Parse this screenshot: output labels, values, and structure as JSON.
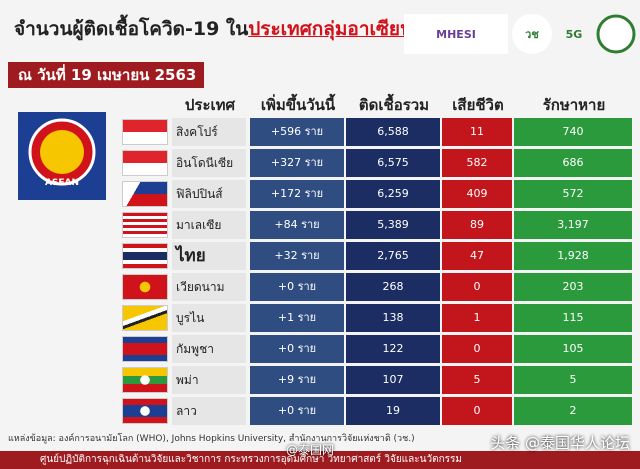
{
  "header": {
    "title_prefix": "จำนวนผู้ติดเชื้อโควิด-19 ใน",
    "title_highlight": "ประเทศกลุ่มอาเซียน",
    "date": "ณ วันที่ 19 เมษายน 2563",
    "logos": [
      "MHESI",
      "วช",
      "5G"
    ]
  },
  "asean_logo": "ASEAN",
  "table": {
    "columns": [
      "ประเทศ",
      "เพิ่มขึ้นวันนี้",
      "ติดเชื้อรวม",
      "เสียชีวิต",
      "รักษาหาย"
    ],
    "rows": [
      {
        "country": "สิงคโปร์",
        "increase": "+596 ราย",
        "total": "6,588",
        "deaths": "11",
        "recovered": "740"
      },
      {
        "country": "อินโดนีเซีย",
        "increase": "+327 ราย",
        "total": "6,575",
        "deaths": "582",
        "recovered": "686"
      },
      {
        "country": "ฟิลิปปินส์",
        "increase": "+172 ราย",
        "total": "6,259",
        "deaths": "409",
        "recovered": "572"
      },
      {
        "country": "มาเลเซีย",
        "increase": "+84 ราย",
        "total": "5,389",
        "deaths": "89",
        "recovered": "3,197"
      },
      {
        "country": "ไทย",
        "increase": "+32 ราย",
        "total": "2,765",
        "deaths": "47",
        "recovered": "1,928"
      },
      {
        "country": "เวียดนาม",
        "increase": "+0 ราย",
        "total": "268",
        "deaths": "0",
        "recovered": "203"
      },
      {
        "country": "บูรไน",
        "increase": "+1 ราย",
        "total": "138",
        "deaths": "1",
        "recovered": "115"
      },
      {
        "country": "กัมพูชา",
        "increase": "+0 ราย",
        "total": "122",
        "deaths": "0",
        "recovered": "105"
      },
      {
        "country": "พม่า",
        "increase": "+9 ราย",
        "total": "107",
        "deaths": "5",
        "recovered": "5"
      },
      {
        "country": "ลาว",
        "increase": "+0 ราย",
        "total": "19",
        "deaths": "0",
        "recovered": "2"
      }
    ]
  },
  "source": "แหล่งข้อมูล: องค์การอนามัยโลก (WHO), Johns Hopkins University, สำนักงานการวิจัยแห่งชาติ (วช.)",
  "footer": "ศูนย์ปฏิบัติการฉุกเฉินด้านวิจัยและวิชาการ กระทรวงการอุดมศึกษา วิทยาศาสตร์ วิจัยและนวัตกรรม",
  "watermark": "头条 @泰国华人论坛",
  "watermark2": "@泰国网"
}
